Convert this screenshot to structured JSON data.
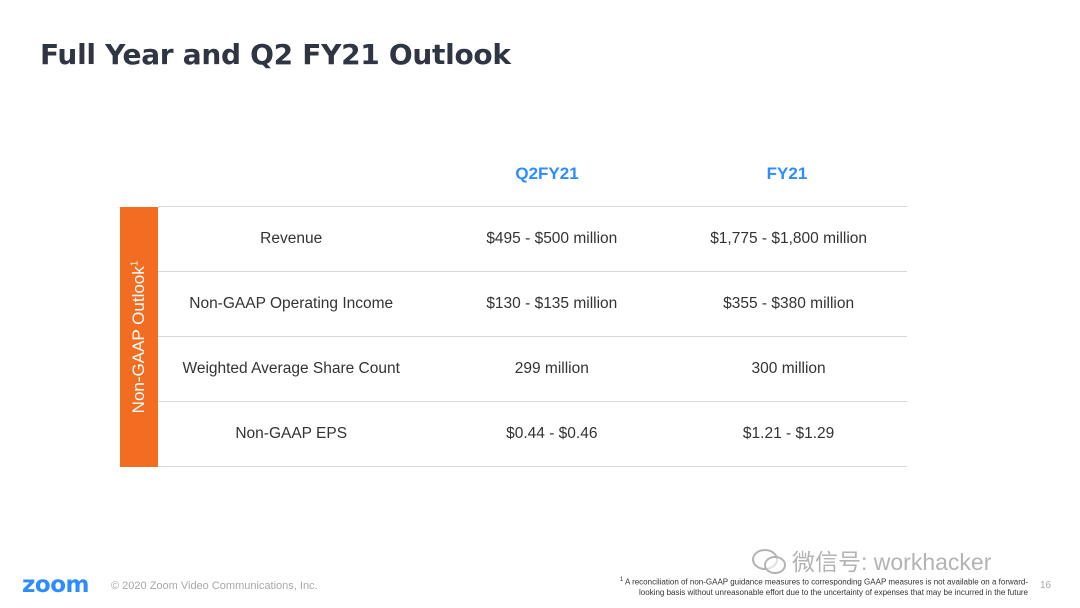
{
  "title": "Full Year and Q2 FY21 Outlook",
  "columns": {
    "q2": "Q2FY21",
    "fy": "FY21"
  },
  "side_label": "Non-GAAP Outlook",
  "side_label_sup": "1",
  "rows": [
    {
      "label": "Revenue",
      "q2": "$495 - $500 million",
      "fy": "$1,775 - $1,800 million"
    },
    {
      "label": "Non-GAAP Operating Income",
      "q2": "$130 - $135 million",
      "fy": "$355 - $380 million"
    },
    {
      "label": "Weighted Average Share Count",
      "q2": "299 million",
      "fy": "300 million"
    },
    {
      "label": "Non-GAAP EPS",
      "q2": "$0.44 - $0.46",
      "fy": "$1.21 - $1.29"
    }
  ],
  "footer": {
    "logo": "zoom",
    "copyright": "© 2020 Zoom Video Communications, Inc.",
    "footnote_sup": "1",
    "footnote_line1": "A reconciliation of non-GAAP guidance measures to corresponding GAAP measures is not available on a forward-",
    "footnote_line2": "looking basis without unreasonable effort due to the uncertainty of expenses that may be incurred in the future",
    "page_number": "16"
  },
  "watermark": {
    "text": "微信号: workhacker",
    "icon": "wechat-icon"
  },
  "colors": {
    "accent_orange": "#f26d21",
    "brand_blue": "#2d8cff",
    "title": "#2f3542"
  }
}
